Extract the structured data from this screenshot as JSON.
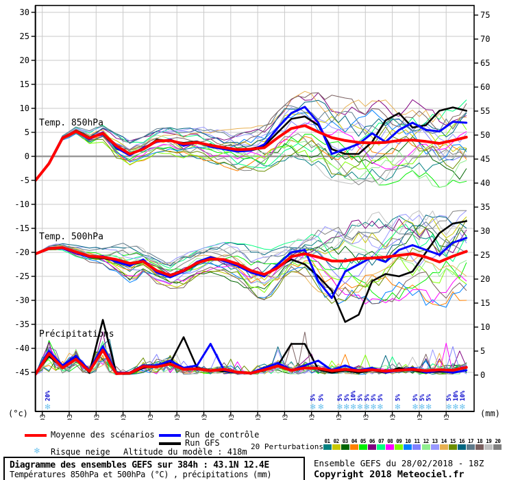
{
  "chart_data": {
    "type": "line",
    "title": "Diagramme des ensembles GEFS sur 384h : 43.1N 12.4E",
    "subtitle": "Températures 850hPa et 500hPa (°C) , précipitations (mm)",
    "x_days": [
      -0.25,
      0.25,
      0.75,
      1.25,
      1.75,
      2.25,
      2.75,
      3.25,
      3.75,
      4.25,
      4.75,
      5.25,
      5.75,
      6.25,
      6.75,
      7.25,
      7.75,
      8.25,
      8.75,
      9.25,
      9.75,
      10.25,
      10.75,
      11.25,
      11.75,
      12.25,
      12.75,
      13.25,
      13.75,
      14.25,
      14.75,
      15.25,
      15.75
    ],
    "x_tick_labels": [
      "01/03",
      "02/03",
      "03/03",
      "04/03",
      "05/03",
      "06/03",
      "07/03",
      "08/03",
      "09/03",
      "10/03",
      "11/03",
      "12/03",
      "13/03",
      "14/03",
      "15/03",
      "16/03"
    ],
    "y_left": {
      "unit": "(°c)",
      "ticks": [
        30,
        25,
        20,
        15,
        10,
        5,
        0,
        -5,
        -10,
        -15,
        -20,
        -25,
        -30,
        -35,
        -40,
        -45
      ]
    },
    "y_right": {
      "unit": "(mm)",
      "ticks": [
        75,
        70,
        65,
        60,
        55,
        50,
        45,
        40,
        35,
        30,
        25,
        20,
        15,
        10,
        5,
        0
      ]
    },
    "series_850": {
      "label": "Temp. 850hPa",
      "mean": [
        -5,
        -1.5,
        3.8,
        5.2,
        3.8,
        4.8,
        2.2,
        0.5,
        1.5,
        3.2,
        3.3,
        2.6,
        2.9,
        2.3,
        1.8,
        1.4,
        1.5,
        1.8,
        3.9,
        5.8,
        6.4,
        5.1,
        3.9,
        3.3,
        2.9,
        2.8,
        2.9,
        3.3,
        3.4,
        3.1,
        2.7,
        3.3,
        4.0
      ],
      "control": [
        -5,
        -1.4,
        3.9,
        5.3,
        3.6,
        5.0,
        1.8,
        0.2,
        1.8,
        3.0,
        3.5,
        2.2,
        3.0,
        2.0,
        1.5,
        1.0,
        1.2,
        2.5,
        6.0,
        9.0,
        10.3,
        7.0,
        0.5,
        1.5,
        2.6,
        4.8,
        3.0,
        5.5,
        7.0,
        5.5,
        5.2,
        7.2,
        7.0
      ],
      "gfs": [
        -5,
        -1.6,
        3.7,
        5.4,
        3.9,
        4.6,
        2.0,
        0.4,
        1.6,
        3.4,
        3.2,
        2.8,
        3.1,
        2.1,
        1.7,
        1.2,
        1.6,
        2.2,
        5.0,
        7.8,
        8.3,
        6.5,
        1.5,
        0.5,
        0.5,
        3.0,
        7.5,
        9.0,
        6.0,
        6.5,
        9.5,
        10.2,
        9.5
      ],
      "spread": [
        0.3,
        0.4,
        0.5,
        0.6,
        0.9,
        1.1,
        1.6,
        1.6,
        1.5,
        1.5,
        1.6,
        1.9,
        2.0,
        2.1,
        2.3,
        2.6,
        2.6,
        2.9,
        3.2,
        3.6,
        4.2,
        4.8,
        5.2,
        5.2,
        5.2,
        5.2,
        5.2,
        5.2,
        5.2,
        5.2,
        5.4,
        5.4,
        5.4
      ]
    },
    "series_500": {
      "label": "Temp. 500hPa",
      "mean": [
        -20.3,
        -19.2,
        -19.0,
        -19.9,
        -20.8,
        -21.0,
        -21.5,
        -22.3,
        -21.9,
        -23.8,
        -24.8,
        -23.8,
        -22.2,
        -21.4,
        -21.5,
        -22.4,
        -23.8,
        -24.6,
        -23.2,
        -20.9,
        -20.3,
        -21.0,
        -21.8,
        -21.8,
        -21.3,
        -21.2,
        -21.0,
        -20.6,
        -20.3,
        -21.0,
        -22.0,
        -20.8,
        -19.8
      ],
      "control": [
        -20.3,
        -19.1,
        -19.2,
        -20.1,
        -21.0,
        -20.8,
        -22.0,
        -22.8,
        -21.5,
        -24.2,
        -25.2,
        -24.0,
        -22.0,
        -21.0,
        -21.8,
        -22.8,
        -24.2,
        -25.0,
        -22.5,
        -20.0,
        -19.5,
        -26.0,
        -29.5,
        -24.0,
        -22.5,
        -21.0,
        -22.0,
        -19.5,
        -18.5,
        -19.5,
        -20.5,
        -18.0,
        -17.0
      ],
      "gfs": [
        -20.4,
        -19.3,
        -19.1,
        -20.0,
        -21.0,
        -21.2,
        -21.8,
        -22.6,
        -22.0,
        -24.0,
        -25.0,
        -24.0,
        -22.4,
        -21.2,
        -21.6,
        -22.6,
        -24.0,
        -24.8,
        -23.0,
        -21.5,
        -22.5,
        -25.0,
        -28.0,
        -34.5,
        -33.0,
        -26.0,
        -24.5,
        -25.0,
        -24.0,
        -20.0,
        -16.0,
        -14.0,
        -13.5
      ],
      "spread": [
        0.3,
        0.5,
        0.6,
        0.8,
        1.0,
        1.3,
        2.2,
        2.6,
        1.6,
        1.6,
        1.6,
        2.1,
        1.6,
        1.6,
        2.1,
        2.6,
        3.1,
        3.1,
        3.1,
        2.6,
        3.1,
        4.2,
        5.2,
        5.6,
        5.6,
        5.6,
        5.6,
        5.6,
        5.6,
        6.0,
        6.0,
        6.0,
        6.0
      ]
    },
    "precip": {
      "label": "Précipitations",
      "mean": [
        0.2,
        4.5,
        1.5,
        3.3,
        0.8,
        5.2,
        0.3,
        0.4,
        1.8,
        1.7,
        2.3,
        1.2,
        1.3,
        0.9,
        1.2,
        0.6,
        0.4,
        1.1,
        1.9,
        1.0,
        1.5,
        1.4,
        0.9,
        1.2,
        0.9,
        1.1,
        0.8,
        1.0,
        1.2,
        0.9,
        1.1,
        1.0,
        1.6
      ],
      "control": [
        0.3,
        5.0,
        2.0,
        4.0,
        1.0,
        6.0,
        0.5,
        0.5,
        2.0,
        2.0,
        3.0,
        1.5,
        2.0,
        6.5,
        1.0,
        0.5,
        0.5,
        1.5,
        2.5,
        1.0,
        2.0,
        3.0,
        1.0,
        2.0,
        1.0,
        1.5,
        0.5,
        1.0,
        1.5,
        0.5,
        1.0,
        0.5,
        1.0
      ],
      "gfs": [
        0.2,
        4.0,
        1.5,
        3.5,
        0.5,
        11.5,
        0.4,
        0.3,
        1.5,
        2.0,
        2.5,
        7.9,
        1.5,
        1.0,
        0.8,
        0.5,
        0.5,
        1.0,
        2.0,
        6.5,
        6.5,
        1.2,
        0.5,
        1.0,
        0.5,
        1.0,
        0.5,
        1.5,
        1.0,
        0.5,
        0.8,
        0.5,
        1.0
      ],
      "max_env": [
        1,
        8,
        4,
        7,
        3,
        14,
        2,
        2,
        5,
        5,
        6,
        8,
        6,
        8,
        4,
        15,
        6,
        5,
        7,
        9,
        13,
        7,
        4,
        6,
        5,
        7,
        5,
        6,
        7,
        5,
        8,
        12,
        9
      ]
    },
    "colors": {
      "mean": "#ff0000",
      "control": "#0000ff",
      "gfs": "#000000",
      "grid": "#c9c9c9",
      "zero_line": "#999999",
      "axis": "#000000",
      "snow": "#6fc3ee",
      "snow_text": "#0000cc"
    },
    "members": {
      "count": 20,
      "ids": [
        "01",
        "02",
        "03",
        "04",
        "05",
        "06",
        "07",
        "08",
        "09",
        "10",
        "11",
        "12",
        "13",
        "14",
        "15",
        "16",
        "17",
        "18",
        "19",
        "20"
      ],
      "colors": [
        "#008080",
        "#c8c800",
        "#006600",
        "#ff8000",
        "#00ee00",
        "#800080",
        "#00ff7f",
        "#ff00ff",
        "#7fff00",
        "#0080ff",
        "#8080ff",
        "#90ee90",
        "#9898ff",
        "#e8b050",
        "#6b8e00",
        "#006680",
        "#5f7a8a",
        "#7a6060",
        "#c0c0c0",
        "#808080"
      ]
    }
  },
  "snow_risk": {
    "markers": [
      {
        "day": 0.2,
        "pct": "20%"
      },
      {
        "day": 10.05,
        "pct": "5%"
      },
      {
        "day": 10.35,
        "pct": "5%"
      },
      {
        "day": 11.05,
        "pct": "5%"
      },
      {
        "day": 11.3,
        "pct": "5%"
      },
      {
        "day": 11.55,
        "pct": "10%"
      },
      {
        "day": 11.8,
        "pct": "5%"
      },
      {
        "day": 12.05,
        "pct": "5%"
      },
      {
        "day": 12.3,
        "pct": "5%"
      },
      {
        "day": 12.55,
        "pct": "5%"
      },
      {
        "day": 13.2,
        "pct": "5%"
      },
      {
        "day": 13.85,
        "pct": "5%"
      },
      {
        "day": 14.1,
        "pct": "5%"
      },
      {
        "day": 14.35,
        "pct": "5%"
      },
      {
        "day": 15.1,
        "pct": "5%"
      },
      {
        "day": 15.35,
        "pct": "10%"
      },
      {
        "day": 15.6,
        "pct": "10%"
      }
    ]
  },
  "legend": {
    "mean": "Moyenne des scénarios",
    "control": "Run de contrôle",
    "gfs": "Run GFS",
    "perturbations": "20 Perturbations",
    "snow": "Risque neige",
    "snow_icon": "✻",
    "altitude": "Altitude du modèle : 418m"
  },
  "footer": {
    "run_info": "Ensemble GEFS du 28/02/2018 - 18Z",
    "copyright": "Copyright 2018 Meteociel.fr"
  }
}
